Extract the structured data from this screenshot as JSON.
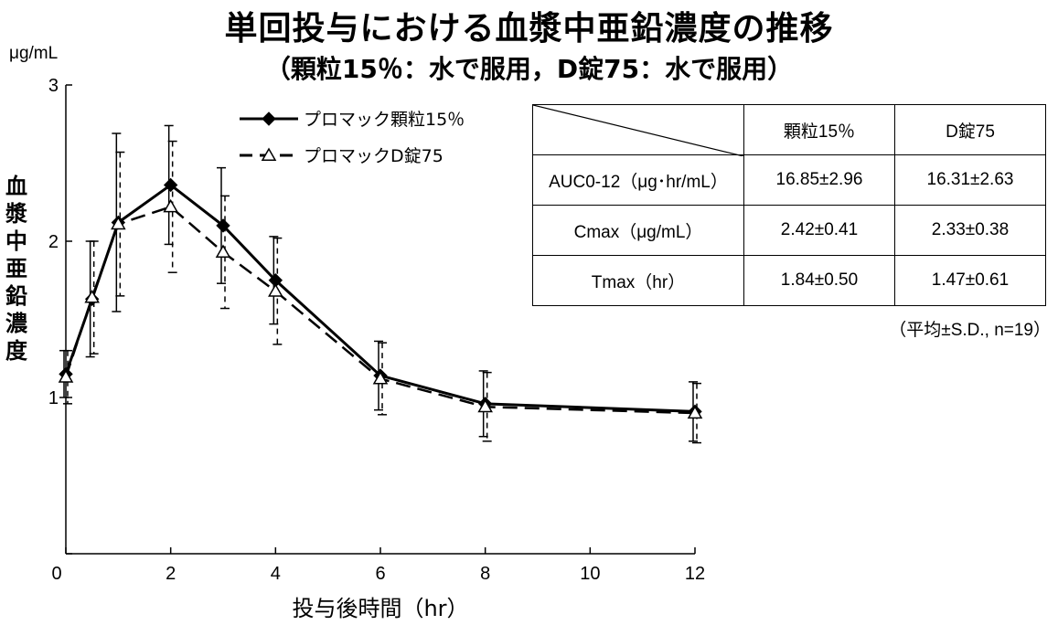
{
  "header": {
    "title": "単回投与における血漿中亜鉛濃度の推移",
    "subtitle": "（顆粒15％：水で服用，D錠75：水で服用）"
  },
  "chart_data": {
    "type": "line",
    "x": [
      0,
      0.5,
      1,
      2,
      3,
      4,
      6,
      8,
      12
    ],
    "xticks": [
      0,
      2,
      4,
      6,
      8,
      10,
      12
    ],
    "xlim": [
      0,
      12
    ],
    "yticks": [
      0,
      1,
      2,
      3
    ],
    "ylim": [
      0,
      3
    ],
    "xlabel": "投与後時間（hr）",
    "ylabel": "血漿中亜鉛濃度",
    "yunit": "μg/mL",
    "grid": false,
    "legend_position": "top-left",
    "series": [
      {
        "name": "プロマック顆粒15％",
        "marker": "diamond-filled",
        "line": "solid",
        "values": [
          1.15,
          1.63,
          2.12,
          2.36,
          2.1,
          1.75,
          1.14,
          0.96,
          0.91
        ],
        "errors": [
          0.15,
          0.37,
          0.57,
          0.38,
          0.37,
          0.28,
          0.22,
          0.21,
          0.19
        ]
      },
      {
        "name": "プロマックD錠75",
        "marker": "triangle-open",
        "line": "dashed",
        "values": [
          1.13,
          1.64,
          2.11,
          2.22,
          1.93,
          1.68,
          1.12,
          0.94,
          0.9
        ],
        "errors": [
          0.17,
          0.36,
          0.46,
          0.42,
          0.36,
          0.34,
          0.23,
          0.22,
          0.19
        ]
      }
    ]
  },
  "table": {
    "header": [
      "",
      "顆粒15％",
      "D錠75"
    ],
    "rows": [
      {
        "label": "AUC0-12（μg･hr/mL）",
        "v1": "16.85±2.96",
        "v2": "16.31±2.63"
      },
      {
        "label": "Cmax（μg/mL）",
        "v1": "2.42±0.41",
        "v2": "2.33±0.38"
      },
      {
        "label": "Tmax（hr）",
        "v1": "1.84±0.50",
        "v2": "1.47±0.61"
      }
    ],
    "note": "（平均±S.D., n=19）"
  }
}
